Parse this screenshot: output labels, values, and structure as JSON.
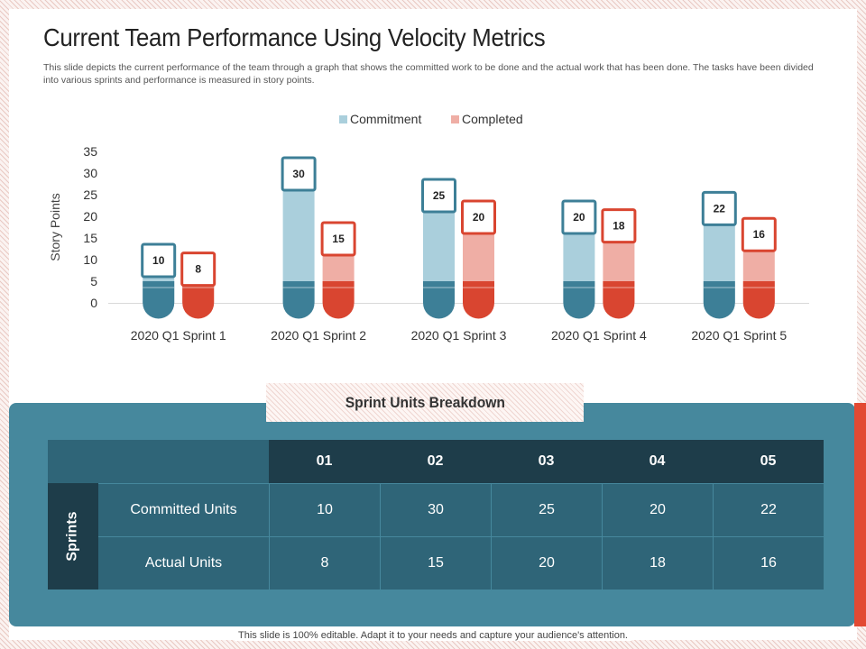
{
  "slide": {
    "title": "Current Team Performance Using Velocity Metrics",
    "description": "This slide depicts the current performance of the team through a graph that shows the committed work to be done and the actual work that has been done. The tasks have been divided into various sprints and performance is measured in story points.",
    "footer": "This slide is 100% editable. Adapt it to your needs and capture your audience's attention."
  },
  "colors": {
    "commitment": "#aacfdc",
    "commitment_dark": "#3d7f97",
    "completed": "#efaea5",
    "completed_dark": "#d94530",
    "panel": "#46889d",
    "accent": "#e24a33"
  },
  "chart_data": {
    "type": "bar",
    "title": "",
    "xlabel": "",
    "ylabel": "Story Points",
    "ylim": [
      0,
      35
    ],
    "yticks": [
      0,
      5,
      10,
      15,
      20,
      25,
      30,
      35
    ],
    "categories": [
      "2020 Q1 Sprint 1",
      "2020 Q1 Sprint 2",
      "2020 Q1 Sprint 3",
      "2020 Q1 Sprint 4",
      "2020 Q1 Sprint 5"
    ],
    "series": [
      {
        "name": "Commitment",
        "values": [
          10,
          30,
          25,
          20,
          22
        ]
      },
      {
        "name": "Completed",
        "values": [
          8,
          15,
          20,
          18,
          16
        ]
      }
    ],
    "legend": "top-center"
  },
  "table": {
    "banner": "Sprint Units Breakdown",
    "side_label": "Sprints",
    "columns": [
      "01",
      "02",
      "03",
      "04",
      "05"
    ],
    "rows": [
      {
        "label": "Committed Units",
        "values": [
          "10",
          "30",
          "25",
          "20",
          "22"
        ]
      },
      {
        "label": "Actual  Units",
        "values": [
          "8",
          "15",
          "20",
          "18",
          "16"
        ]
      }
    ]
  }
}
